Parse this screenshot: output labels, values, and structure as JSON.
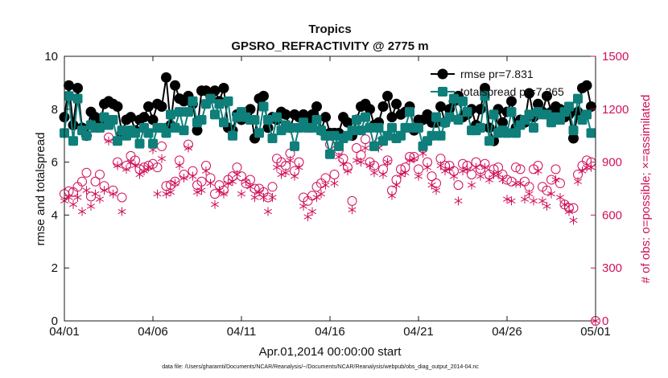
{
  "chart_data": {
    "type": "line",
    "title": "Tropics",
    "subtitle": "GPSRO_REFRACTIVITY @ 2775 m",
    "xlabel": "Apr.01,2014 00:00:00 start",
    "ylabel": "rmse and totalspread",
    "y2label": "# of obs: o=possible; ×=assimilated",
    "xlim": [
      0,
      30
    ],
    "ylim": [
      0,
      10
    ],
    "y2lim": [
      0,
      1500
    ],
    "x_ticks": [
      0,
      5,
      10,
      15,
      20,
      25,
      30
    ],
    "x_tick_labels": [
      "04/01",
      "04/06",
      "04/11",
      "04/16",
      "04/21",
      "04/26",
      "05/01"
    ],
    "y_ticks": [
      0,
      2,
      4,
      6,
      8,
      10
    ],
    "y2_ticks": [
      0,
      300,
      600,
      900,
      1200,
      1500
    ],
    "footer": "data file: /Users/gharamti/Documents/NCAR/Reanalysis/~/Documents/NCAR/Reanalysis/webpub/obs_diag_output_2014-04.nc",
    "colors": {
      "rmse": "#000000",
      "spread": "#0e7f7a",
      "obs": "#d0105a"
    },
    "series": [
      {
        "name": "rmse",
        "legend": "rmse pr=7.831",
        "x": [
          0.0,
          0.25,
          0.5,
          0.75,
          1.0,
          1.25,
          1.5,
          1.75,
          2.0,
          2.25,
          2.5,
          2.75,
          3.0,
          3.25,
          3.5,
          3.75,
          4.0,
          4.25,
          4.5,
          4.75,
          5.0,
          5.25,
          5.5,
          5.75,
          6.0,
          6.25,
          6.5,
          6.75,
          7.0,
          7.25,
          7.5,
          7.75,
          8.0,
          8.25,
          8.5,
          8.75,
          9.0,
          9.25,
          9.5,
          9.75,
          10.0,
          10.25,
          10.5,
          10.75,
          11.0,
          11.25,
          11.5,
          11.75,
          12.0,
          12.25,
          12.5,
          12.75,
          13.0,
          13.25,
          13.5,
          13.75,
          14.0,
          14.25,
          14.5,
          14.75,
          15.0,
          15.25,
          15.5,
          15.75,
          16.0,
          16.25,
          16.5,
          16.75,
          17.0,
          17.25,
          17.5,
          17.75,
          18.0,
          18.25,
          18.5,
          18.75,
          19.0,
          19.25,
          19.5,
          19.75,
          20.0,
          20.25,
          20.5,
          20.75,
          21.0,
          21.25,
          21.5,
          21.75,
          22.0,
          22.25,
          22.5,
          22.75,
          23.0,
          23.25,
          23.5,
          23.75,
          24.0,
          24.25,
          24.5,
          24.75,
          25.0,
          25.25,
          25.5,
          25.75,
          26.0,
          26.25,
          26.5,
          26.75,
          27.0,
          27.25,
          27.5,
          27.75,
          28.0,
          28.25,
          28.5,
          28.75,
          29.0,
          29.25,
          29.5,
          29.75
        ],
        "values": [
          7.7,
          8.9,
          7.4,
          8.8,
          7.3,
          7.0,
          7.9,
          7.7,
          7.4,
          8.2,
          8.3,
          8.2,
          8.1,
          7.1,
          7.6,
          7.7,
          7.2,
          7.6,
          7.7,
          8.1,
          7.6,
          8.2,
          8.1,
          9.2,
          7.4,
          8.9,
          8.4,
          8.3,
          8.5,
          8.2,
          7.2,
          8.7,
          8.7,
          8.5,
          8.7,
          8.3,
          8.8,
          7.3,
          7.2,
          7.8,
          7.6,
          7.8,
          8.0,
          6.9,
          8.4,
          8.5,
          7.3,
          7.7,
          7.6,
          7.9,
          7.8,
          7.3,
          7.8,
          7.7,
          7.8,
          7.5,
          7.8,
          8.1,
          7.2,
          7.7,
          7.1,
          7.1,
          7.1,
          7.7,
          7.5,
          7.0,
          7.6,
          8.1,
          8.2,
          8.0,
          7.4,
          7.5,
          8.1,
          8.5,
          7.7,
          8.2,
          7.8,
          7.9,
          8.1,
          7.2,
          7.6,
          7.6,
          7.8,
          7.5,
          7.5,
          8.1,
          7.5,
          8.0,
          8.3,
          8.5,
          7.7,
          7.8,
          8.0,
          7.4,
          8.0,
          8.8,
          7.3,
          6.8,
          8.0,
          7.5,
          7.9,
          8.3,
          7.3,
          7.6,
          7.5,
          8.6,
          7.7,
          8.2,
          7.9,
          8.5,
          7.9,
          8.1,
          8.0,
          7.7,
          7.8,
          6.9,
          7.9,
          8.8,
          8.9,
          8.1
        ]
      },
      {
        "name": "totalspread",
        "legend": "totalspread pr=7.265",
        "x": [
          0.0,
          0.25,
          0.5,
          0.75,
          1.0,
          1.25,
          1.5,
          1.75,
          2.0,
          2.25,
          2.5,
          2.75,
          3.0,
          3.25,
          3.5,
          3.75,
          4.0,
          4.25,
          4.5,
          4.75,
          5.0,
          5.25,
          5.5,
          5.75,
          6.0,
          6.25,
          6.5,
          6.75,
          7.0,
          7.25,
          7.5,
          7.75,
          8.0,
          8.25,
          8.5,
          8.75,
          9.0,
          9.25,
          9.5,
          9.75,
          10.0,
          10.25,
          10.5,
          10.75,
          11.0,
          11.25,
          11.5,
          11.75,
          12.0,
          12.25,
          12.5,
          12.75,
          13.0,
          13.25,
          13.5,
          13.75,
          14.0,
          14.25,
          14.5,
          14.75,
          15.0,
          15.25,
          15.5,
          15.75,
          16.0,
          16.25,
          16.5,
          16.75,
          17.0,
          17.25,
          17.5,
          17.75,
          18.0,
          18.25,
          18.5,
          18.75,
          19.0,
          19.25,
          19.5,
          19.75,
          20.0,
          20.25,
          20.5,
          20.75,
          21.0,
          21.25,
          21.5,
          21.75,
          22.0,
          22.25,
          22.5,
          22.75,
          23.0,
          23.25,
          23.5,
          23.75,
          24.0,
          24.25,
          24.5,
          24.75,
          25.0,
          25.25,
          25.5,
          25.75,
          26.0,
          26.25,
          26.5,
          26.75,
          27.0,
          27.25,
          27.5,
          27.75,
          28.0,
          28.25,
          28.5,
          28.75,
          29.0,
          29.25,
          29.5,
          29.75
        ],
        "values": [
          7.1,
          8.5,
          6.8,
          8.4,
          7.2,
          7.0,
          7.4,
          7.3,
          7.3,
          7.7,
          7.4,
          7.6,
          6.8,
          7.2,
          7.0,
          7.2,
          7.1,
          6.7,
          7.3,
          7.1,
          6.7,
          7.3,
          7.3,
          7.1,
          7.8,
          7.3,
          7.9,
          7.2,
          7.9,
          8.3,
          7.5,
          7.6,
          8.2,
          8.4,
          7.8,
          8.2,
          7.5,
          8.3,
          7.0,
          7.7,
          7.9,
          7.7,
          7.6,
          7.6,
          7.1,
          8.1,
          7.6,
          6.9,
          7.7,
          7.2,
          7.4,
          7.3,
          6.6,
          7.3,
          7.5,
          7.3,
          7.3,
          7.6,
          7.2,
          7.0,
          6.3,
          7.0,
          6.6,
          6.9,
          7.0,
          7.2,
          7.6,
          7.2,
          7.7,
          7.3,
          6.6,
          7.3,
          6.8,
          7.0,
          7.3,
          6.9,
          7.0,
          7.3,
          7.9,
          7.3,
          7.3,
          6.6,
          6.8,
          7.0,
          7.7,
          7.0,
          7.5,
          7.7,
          8.4,
          7.6,
          8.3,
          7.9,
          7.2,
          7.2,
          7.3,
          8.5,
          6.8,
          7.8,
          7.1,
          7.2,
          7.1,
          7.9,
          7.1,
          7.4,
          7.6,
          7.8,
          7.3,
          7.9,
          7.8,
          7.8,
          7.5,
          7.7,
          7.6,
          7.9,
          8.1,
          7.2,
          8.4,
          7.6,
          7.8,
          7.1
        ]
      },
      {
        "name": "obs_possible",
        "axis": "right",
        "marker": "circle",
        "x": [
          0.0,
          0.25,
          0.5,
          0.75,
          1.0,
          1.25,
          1.5,
          1.75,
          2.0,
          2.25,
          2.5,
          2.75,
          3.0,
          3.25,
          3.5,
          3.75,
          4.0,
          4.25,
          4.5,
          4.75,
          5.0,
          5.25,
          5.5,
          5.75,
          6.0,
          6.25,
          6.5,
          6.75,
          7.0,
          7.25,
          7.5,
          7.75,
          8.0,
          8.25,
          8.5,
          8.75,
          9.0,
          9.25,
          9.5,
          9.75,
          10.0,
          10.25,
          10.5,
          10.75,
          11.0,
          11.25,
          11.5,
          11.75,
          12.0,
          12.25,
          12.5,
          12.75,
          13.0,
          13.25,
          13.5,
          13.75,
          14.0,
          14.25,
          14.5,
          14.75,
          15.0,
          15.25,
          15.5,
          15.75,
          16.0,
          16.25,
          16.5,
          16.75,
          17.0,
          17.25,
          17.5,
          17.75,
          18.0,
          18.25,
          18.5,
          18.75,
          19.0,
          19.25,
          19.5,
          19.75,
          20.0,
          20.25,
          20.5,
          20.75,
          21.0,
          21.25,
          21.5,
          21.75,
          22.0,
          22.25,
          22.5,
          22.75,
          23.0,
          23.25,
          23.5,
          23.75,
          24.0,
          24.25,
          24.5,
          24.75,
          25.0,
          25.25,
          25.5,
          25.75,
          26.0,
          26.25,
          26.5,
          26.75,
          27.0,
          27.25,
          27.5,
          27.75,
          28.0,
          28.25,
          28.5,
          28.75,
          29.0,
          29.25,
          29.5,
          29.75,
          30.0
        ],
        "values": [
          720,
          735,
          730,
          760,
          790,
          840,
          705,
          790,
          830,
          765,
          1040,
          740,
          900,
          700,
          880,
          935,
          910,
          860,
          870,
          880,
          890,
          870,
          990,
          765,
          770,
          790,
          910,
          830,
          1000,
          850,
          770,
          790,
          880,
          810,
          720,
          770,
          740,
          800,
          820,
          870,
          820,
          780,
          800,
          750,
          750,
          730,
          700,
          760,
          920,
          900,
          880,
          950,
          850,
          900,
          700,
          680,
          710,
          760,
          780,
          810,
          1000,
          830,
          970,
          920,
          870,
          680,
          980,
          940,
          1030,
          900,
          880,
          1010,
          860,
          910,
          740,
          800,
          860,
          870,
          930,
          930,
          860,
          980,
          900,
          820,
          780,
          920,
          880,
          880,
          850,
          770,
          890,
          880,
          830,
          900,
          860,
          890,
          830,
          860,
          870,
          830,
          800,
          790,
          870,
          860,
          790,
          760,
          860,
          880,
          760,
          740,
          800,
          860,
          780,
          660,
          640,
          640,
          830,
          880,
          910,
          900,
          0
        ]
      },
      {
        "name": "obs_assimilated",
        "axis": "right",
        "marker": "asterisk",
        "x": [
          0.0,
          0.25,
          0.5,
          0.75,
          1.0,
          1.25,
          1.5,
          1.75,
          2.0,
          2.25,
          2.5,
          2.75,
          3.0,
          3.25,
          3.5,
          3.75,
          4.0,
          4.25,
          4.5,
          4.75,
          5.0,
          5.25,
          5.5,
          5.75,
          6.0,
          6.25,
          6.5,
          6.75,
          7.0,
          7.25,
          7.5,
          7.75,
          8.0,
          8.25,
          8.5,
          8.75,
          9.0,
          9.25,
          9.5,
          9.75,
          10.0,
          10.25,
          10.5,
          10.75,
          11.0,
          11.25,
          11.5,
          11.75,
          12.0,
          12.25,
          12.5,
          12.75,
          13.0,
          13.25,
          13.5,
          13.75,
          14.0,
          14.25,
          14.5,
          14.75,
          15.0,
          15.25,
          15.5,
          15.75,
          16.0,
          16.25,
          16.5,
          16.75,
          17.0,
          17.25,
          17.5,
          17.75,
          18.0,
          18.25,
          18.5,
          18.75,
          19.0,
          19.25,
          19.5,
          19.75,
          20.0,
          20.25,
          20.5,
          20.75,
          21.0,
          21.25,
          21.5,
          21.75,
          22.0,
          22.25,
          22.5,
          22.75,
          23.0,
          23.25,
          23.5,
          23.75,
          24.0,
          24.25,
          24.5,
          24.75,
          25.0,
          25.25,
          25.5,
          25.75,
          26.0,
          26.25,
          26.5,
          26.75,
          27.0,
          27.25,
          27.5,
          27.75,
          28.0,
          28.25,
          28.5,
          28.75,
          29.0,
          29.25,
          29.5,
          29.75,
          30.0
        ],
        "values": [
          680,
          700,
          660,
          700,
          620,
          740,
          650,
          720,
          690,
          740,
          1020,
          720,
          880,
          620,
          860,
          900,
          880,
          830,
          850,
          870,
          970,
          720,
          920,
          720,
          730,
          780,
          880,
          810,
          980,
          820,
          730,
          740,
          850,
          780,
          660,
          740,
          720,
          780,
          790,
          830,
          720,
          790,
          760,
          700,
          730,
          700,
          620,
          700,
          870,
          830,
          840,
          910,
          820,
          870,
          650,
          590,
          620,
          700,
          720,
          770,
          950,
          780,
          930,
          890,
          850,
          630,
          910,
          900,
          980,
          880,
          840,
          980,
          830,
          900,
          710,
          770,
          830,
          840,
          910,
          920,
          820,
          950,
          870,
          770,
          740,
          880,
          850,
          860,
          820,
          680,
          850,
          860,
          770,
          870,
          820,
          870,
          800,
          830,
          830,
          800,
          690,
          680,
          780,
          780,
          690,
          720,
          680,
          850,
          680,
          650,
          720,
          800,
          700,
          660,
          620,
          570,
          790,
          850,
          870,
          870,
          0
        ]
      }
    ]
  }
}
